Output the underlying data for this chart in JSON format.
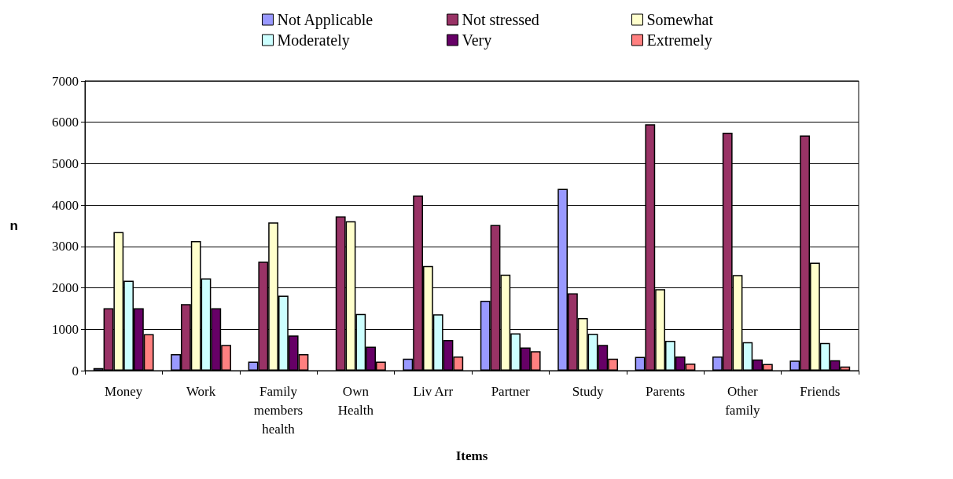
{
  "chart_data": {
    "type": "bar",
    "xlabel": "Items",
    "ylabel": "n",
    "categories": [
      "Money",
      "Work",
      "Family\nmembers\nhealth",
      "Own\nHealth",
      "Liv Arr",
      "Partner",
      "Study",
      "Parents",
      "Other\nfamily",
      "Friends"
    ],
    "series": [
      {
        "name": "Not Applicable",
        "color": "#9999ff",
        "values": [
          60,
          400,
          220,
          0,
          290,
          1690,
          4390,
          330,
          340,
          240
        ]
      },
      {
        "name": "Not stressed",
        "color": "#993366",
        "values": [
          1510,
          1610,
          2630,
          3730,
          4230,
          3520,
          1870,
          5950,
          5750,
          5680
        ]
      },
      {
        "name": "Somewhat",
        "color": "#ffffcc",
        "values": [
          3350,
          3130,
          3580,
          3610,
          2530,
          2320,
          1270,
          1970,
          2310,
          2610
        ]
      },
      {
        "name": "Moderately",
        "color": "#ccffff",
        "values": [
          2170,
          2230,
          1810,
          1370,
          1360,
          900,
          890,
          720,
          690,
          670
        ]
      },
      {
        "name": "Very",
        "color": "#660066",
        "values": [
          1510,
          1510,
          850,
          580,
          740,
          560,
          620,
          340,
          270,
          250
        ]
      },
      {
        "name": "Extremely",
        "color": "#ff8080",
        "values": [
          880,
          620,
          400,
          220,
          340,
          470,
          290,
          170,
          160,
          100
        ]
      }
    ],
    "ylim": [
      0,
      7000
    ],
    "yticks": [
      0,
      1000,
      2000,
      3000,
      4000,
      5000,
      6000,
      7000
    ],
    "grid": "y",
    "legend": "top"
  }
}
